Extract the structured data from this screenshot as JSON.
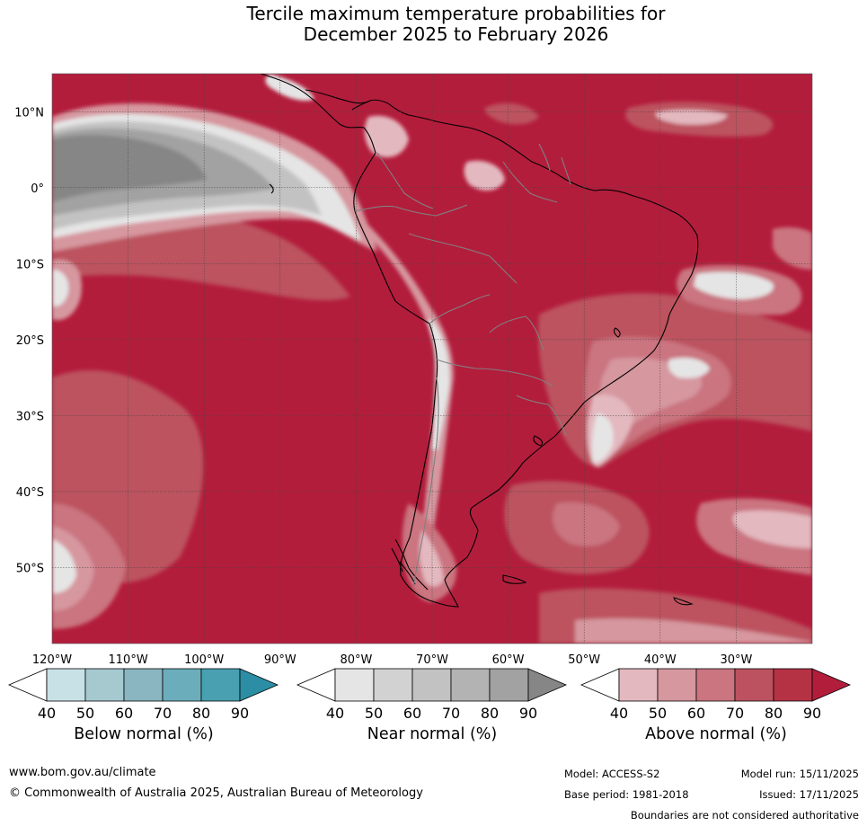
{
  "title_line1": "Tercile maximum temperature probabilities for",
  "title_line2": "December 2025 to February 2026",
  "map": {
    "lat_labels": [
      "10°N",
      "0°",
      "10°S",
      "20°S",
      "30°S",
      "40°S",
      "50°S"
    ],
    "lon_labels": [
      "120°W",
      "110°W",
      "100°W",
      "90°W",
      "80°W",
      "70°W",
      "60°W",
      "50°W",
      "40°W",
      "30°W"
    ],
    "lat_values": [
      10,
      0,
      -10,
      -20,
      -30,
      -40,
      -50
    ],
    "lon_values": [
      -120,
      -110,
      -100,
      -90,
      -80,
      -70,
      -60,
      -50,
      -40,
      -30
    ],
    "extent": {
      "lon_min": -120,
      "lon_max": -20,
      "lat_min": -60,
      "lat_max": 15
    },
    "colors": {
      "above": [
        "#e3b8bf",
        "#d6979f",
        "#ca7580",
        "#bc525f",
        "#b53245",
        "#b31d3c"
      ],
      "near": [
        "#e5e5e5",
        "#d2d2d2",
        "#c2c2c2",
        "#b3b3b3",
        "#a2a2a2",
        "#868686"
      ],
      "below": [
        "#c8e1e7",
        "#a6c9d0",
        "#89b6c1",
        "#6cadbb",
        "#48a0b1",
        "#2b8ea4"
      ]
    }
  },
  "colorbars": [
    {
      "label": "Below normal (%)",
      "ticks": [
        "40",
        "50",
        "60",
        "70",
        "80",
        "90"
      ],
      "colors": [
        "#c8e1e7",
        "#a6c9d0",
        "#89b6c1",
        "#6cadbb",
        "#48a0b1",
        "#2b8ea4"
      ]
    },
    {
      "label": "Near normal (%)",
      "ticks": [
        "40",
        "50",
        "60",
        "70",
        "80",
        "90"
      ],
      "colors": [
        "#e5e5e5",
        "#d2d2d2",
        "#c2c2c2",
        "#b3b3b3",
        "#a2a2a2",
        "#868686"
      ]
    },
    {
      "label": "Above normal (%)",
      "ticks": [
        "40",
        "50",
        "60",
        "70",
        "80",
        "90"
      ],
      "colors": [
        "#e3b8bf",
        "#d6979f",
        "#ca7580",
        "#bc525f",
        "#b53245",
        "#b31d3c"
      ]
    }
  ],
  "footer": {
    "website": "www.bom.gov.au/climate",
    "copyright": "© Commonwealth of Australia 2025, Australian Bureau of Meteorology",
    "model": "Model: ACCESS-S2",
    "model_run": "Model run: 15/11/2025",
    "base_period": "Base period: 1981-2018",
    "issued": "Issued: 17/11/2025",
    "disclaimer": "Boundaries are not considered authoritative"
  }
}
